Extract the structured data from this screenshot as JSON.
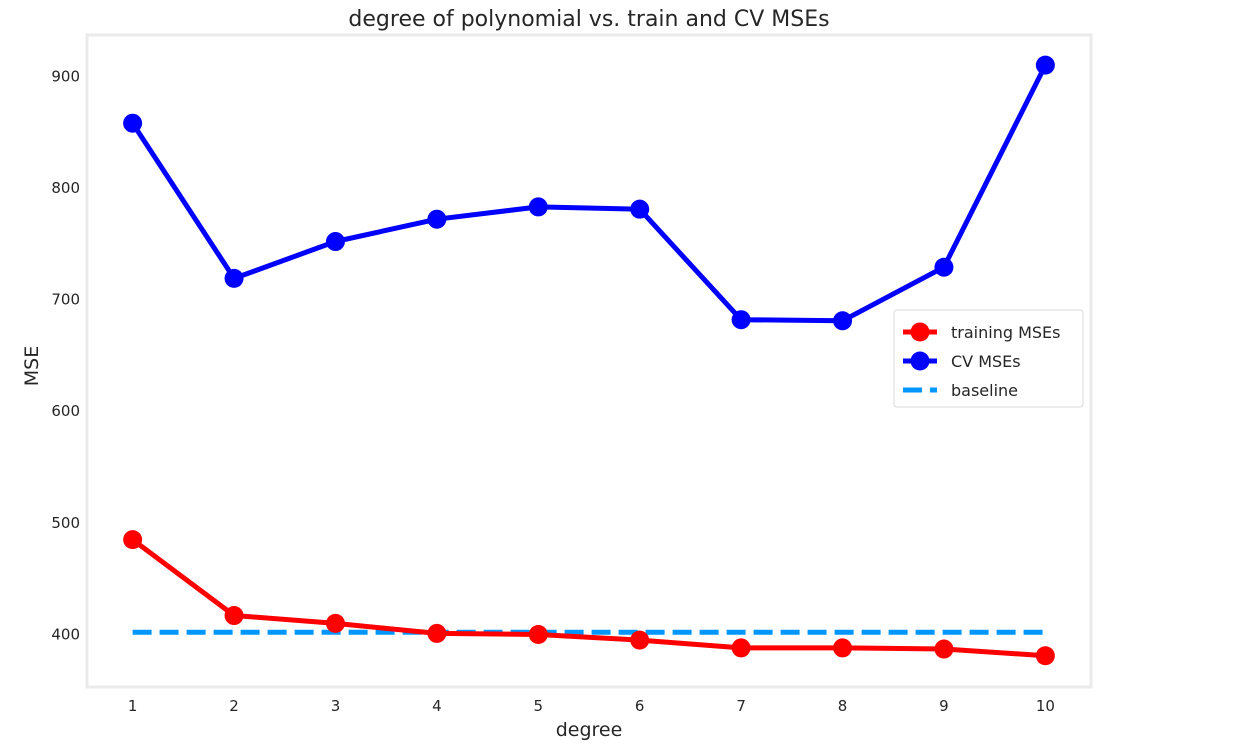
{
  "chart_data": {
    "type": "line",
    "title": "degree of polynomial vs. train and CV MSEs",
    "xlabel": "degree",
    "ylabel": "MSE",
    "x": [
      1,
      2,
      3,
      4,
      5,
      6,
      7,
      8,
      9,
      10
    ],
    "xticks": [
      "1",
      "2",
      "3",
      "4",
      "5",
      "6",
      "7",
      "8",
      "9",
      "10"
    ],
    "yticks": [
      "400",
      "500",
      "600",
      "700",
      "800",
      "900"
    ],
    "yticks_values": [
      400,
      500,
      600,
      700,
      800,
      900
    ],
    "xlim": [
      0.55,
      10.45
    ],
    "ylim": [
      353,
      937
    ],
    "grid": false,
    "legend_position": "center-right",
    "series": [
      {
        "name": "training MSEs",
        "color": "#ff0000",
        "style": "solid-marker",
        "values": [
          485,
          417,
          410,
          401,
          400,
          395,
          388,
          388,
          387,
          381
        ]
      },
      {
        "name": "CV MSEs",
        "color": "#0000ff",
        "style": "solid-marker",
        "values": [
          858,
          719,
          752,
          772,
          783,
          781,
          682,
          681,
          729,
          910
        ]
      },
      {
        "name": "baseline",
        "color": "#0096ff",
        "style": "dashed",
        "values": [
          402,
          402,
          402,
          402,
          402,
          402,
          402,
          402,
          402,
          402
        ]
      }
    ]
  }
}
